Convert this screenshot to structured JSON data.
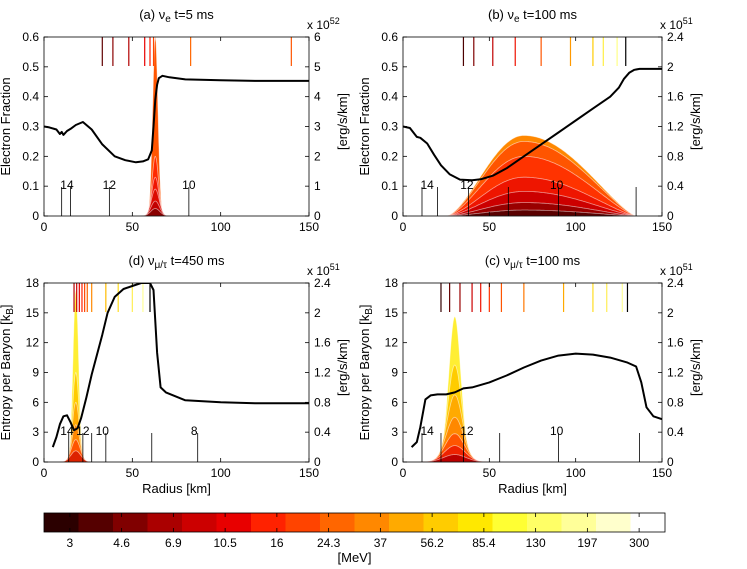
{
  "chart_data": [
    {
      "type": "line",
      "title_main": "(a) ν",
      "title_sub": "e",
      "title_rest": " t=5 ms",
      "xlabel": "",
      "ylabel": "Electron Fraction",
      "ylabel_right": "[erg/s/km]",
      "right_exponent_base": "x 10",
      "right_exponent": "52",
      "xlim": [
        0,
        150
      ],
      "ylim": [
        0,
        0.6
      ],
      "xticks": [
        0,
        50,
        100,
        150
      ],
      "yticks": [
        0,
        0.1,
        0.2,
        0.3,
        0.4,
        0.5,
        0.6
      ],
      "ytick_labels": [
        "0",
        "0.1",
        "0.2",
        "0.3",
        "0.4",
        "0.5",
        "0.6"
      ],
      "yticks_right": [
        0,
        1,
        2,
        3,
        4,
        5,
        6
      ],
      "yticks_right_labels": [
        "0",
        "1",
        "2",
        "3",
        "4",
        "5",
        "6"
      ],
      "right_max": 6,
      "curve": {
        "x": [
          0,
          3,
          7,
          9,
          10,
          11,
          13,
          15,
          18,
          22,
          27,
          33,
          40,
          46,
          52,
          56,
          59,
          61,
          62,
          63,
          64,
          65,
          67,
          71,
          80,
          100,
          120,
          150
        ],
        "y": [
          0.3,
          0.297,
          0.29,
          0.275,
          0.282,
          0.272,
          0.285,
          0.292,
          0.305,
          0.315,
          0.29,
          0.24,
          0.2,
          0.187,
          0.18,
          0.183,
          0.19,
          0.22,
          0.3,
          0.39,
          0.44,
          0.462,
          0.47,
          0.465,
          0.458,
          0.455,
          0.453,
          0.453
        ]
      },
      "spectra": {
        "type": "peak",
        "center": 63,
        "widths": [
          1.5,
          1.8,
          2.0,
          2.2,
          2.4,
          2.6
        ],
        "heights": [
          6.0,
          2.0,
          1.3,
          0.9,
          0.5,
          0.25
        ],
        "colors": [
          "#ff5500",
          "#ff2a00",
          "#f01500",
          "#dc0a00",
          "#c20000",
          "#8a0000"
        ]
      },
      "shells_top": [
        {
          "x": 60,
          "color": "#ff1a00"
        },
        {
          "x": 57,
          "color": "#e80000"
        },
        {
          "x": 48,
          "color": "#b30000"
        },
        {
          "x": 39,
          "color": "#8b0000"
        },
        {
          "x": 33,
          "color": "#600000"
        },
        {
          "x": 62,
          "color": "#ff4400"
        },
        {
          "x": 83,
          "color": "#ff6600"
        },
        {
          "x": 140,
          "color": "#ff5500"
        }
      ],
      "shells_bottom": [
        10,
        15,
        37,
        82
      ],
      "shell_labels": [
        {
          "x": 13,
          "text": "14"
        },
        {
          "x": 37,
          "text": "12"
        },
        {
          "x": 82,
          "text": "10"
        }
      ]
    },
    {
      "type": "line",
      "title_main": "(b) ν",
      "title_sub": "e",
      "title_rest": " t=100 ms",
      "xlabel": "",
      "ylabel": "Electron Fraction",
      "ylabel_right": "[erg/s/km]",
      "right_exponent_base": "x 10",
      "right_exponent": "51",
      "xlim": [
        0,
        150
      ],
      "ylim": [
        0,
        0.6
      ],
      "xticks": [
        0,
        50,
        100,
        150
      ],
      "yticks": [
        0,
        0.1,
        0.2,
        0.3,
        0.4,
        0.5,
        0.6
      ],
      "ytick_labels": [
        "0",
        "0.1",
        "0.2",
        "0.3",
        "0.4",
        "0.5",
        "0.6"
      ],
      "yticks_right": [
        0,
        0.4,
        0.8,
        1.2,
        1.6,
        2.0,
        2.4
      ],
      "yticks_right_labels": [
        "0",
        "0.4",
        "0.8",
        "1.2",
        "1.6",
        "2",
        "2.4"
      ],
      "right_max": 2.4,
      "curve": {
        "x": [
          0,
          4,
          6,
          8,
          10,
          14,
          18,
          22,
          27,
          33,
          40,
          45,
          52,
          60,
          70,
          80,
          90,
          100,
          110,
          120,
          125,
          128,
          131,
          134,
          137,
          150
        ],
        "y": [
          0.3,
          0.295,
          0.28,
          0.265,
          0.262,
          0.243,
          0.205,
          0.17,
          0.14,
          0.122,
          0.12,
          0.123,
          0.135,
          0.16,
          0.2,
          0.24,
          0.28,
          0.32,
          0.36,
          0.4,
          0.43,
          0.46,
          0.48,
          0.49,
          0.493,
          0.493
        ]
      },
      "spectra": {
        "type": "broad",
        "start": 25,
        "peak": 70,
        "end": 135,
        "heights": [
          1.08,
          1.0,
          0.8,
          0.52,
          0.33,
          0.18,
          0.08
        ],
        "colors": [
          "#ff8800",
          "#ff5500",
          "#ff3300",
          "#ee1500",
          "#cc0000",
          "#990000",
          "#5a0000"
        ]
      },
      "shells_top": [
        {
          "x": 35,
          "color": "#4b0000"
        },
        {
          "x": 41,
          "color": "#800000"
        },
        {
          "x": 52,
          "color": "#c00000"
        },
        {
          "x": 65,
          "color": "#ee1100"
        },
        {
          "x": 80,
          "color": "#ff5500"
        },
        {
          "x": 97,
          "color": "#ff9900"
        },
        {
          "x": 110,
          "color": "#ffcc00"
        },
        {
          "x": 116,
          "color": "#ffee44"
        },
        {
          "x": 124,
          "color": "#ffff88"
        },
        {
          "x": 129,
          "color": "#000000"
        }
      ],
      "shells_bottom": [
        11,
        20,
        38,
        61,
        90,
        135
      ],
      "shell_labels": [
        {
          "x": 14,
          "text": "14"
        },
        {
          "x": 37,
          "text": "12"
        },
        {
          "x": 89,
          "text": "10"
        }
      ]
    },
    {
      "type": "line",
      "title_main": "(d) ν",
      "title_sub": "μ/τ",
      "title_rest": " t=450 ms",
      "xlabel": "Radius [km]",
      "ylabel": "Entropy per Baryon [k",
      "ylabel_sub": "B",
      "ylabel_end": "]",
      "ylabel_right": "[erg/s/km]",
      "right_exponent_base": "x 10",
      "right_exponent": "51",
      "xlim": [
        0,
        150
      ],
      "ylim": [
        0,
        18
      ],
      "xticks": [
        0,
        50,
        100,
        150
      ],
      "yticks": [
        0,
        3,
        6,
        9,
        12,
        15,
        18
      ],
      "ytick_labels": [
        "0",
        "3",
        "6",
        "9",
        "12",
        "15",
        "18"
      ],
      "yticks_right": [
        0,
        0.4,
        0.8,
        1.2,
        1.6,
        2.0,
        2.4
      ],
      "yticks_right_labels": [
        "0",
        "0.4",
        "0.8",
        "1.2",
        "1.6",
        "2",
        "2.4"
      ],
      "right_max": 2.4,
      "curve": {
        "x": [
          5,
          7,
          9,
          11,
          13,
          15,
          17,
          19,
          21,
          24,
          27,
          30,
          33,
          36,
          40,
          45,
          50,
          55,
          58,
          60,
          62,
          64,
          66,
          69,
          80,
          100,
          120,
          150
        ],
        "y": [
          1.5,
          2.5,
          3.8,
          4.6,
          4.7,
          4.0,
          3.2,
          3.4,
          4.4,
          6.5,
          8.8,
          10.8,
          12.8,
          15.0,
          16.6,
          17.4,
          17.7,
          18.0,
          18.0,
          18.0,
          17.3,
          11.0,
          7.5,
          7.0,
          6.2,
          6.0,
          5.9,
          5.9
        ]
      },
      "spectra": {
        "type": "peak",
        "center": 18,
        "widths": [
          1.6,
          1.8,
          2.0,
          2.2,
          2.5,
          2.8
        ],
        "heights": [
          2.3,
          1.2,
          0.8,
          0.5,
          0.3,
          0.15
        ],
        "colors": [
          "#ffee33",
          "#ffcc00",
          "#ffaa00",
          "#ff8800",
          "#ff5500",
          "#dd2200"
        ]
      },
      "shells_top": [
        {
          "x": 17,
          "color": "#b30000"
        },
        {
          "x": 18.5,
          "color": "#cc0000"
        },
        {
          "x": 20,
          "color": "#e60000"
        },
        {
          "x": 21.5,
          "color": "#ff2200"
        },
        {
          "x": 23,
          "color": "#ff4400"
        },
        {
          "x": 24.5,
          "color": "#ff6600"
        },
        {
          "x": 27,
          "color": "#ff8800"
        },
        {
          "x": 35,
          "color": "#ffbb00"
        },
        {
          "x": 42,
          "color": "#ffdd22"
        },
        {
          "x": 50,
          "color": "#ffee55"
        },
        {
          "x": 56,
          "color": "#ffff99"
        },
        {
          "x": 60,
          "color": "#000000"
        }
      ],
      "shells_bottom": [
        14,
        22,
        27,
        35,
        61,
        87
      ],
      "shell_labels": [
        {
          "x": 13,
          "text": "14"
        },
        {
          "x": 22,
          "text": "12"
        },
        {
          "x": 33,
          "text": "10"
        },
        {
          "x": 85,
          "text": "8"
        }
      ]
    },
    {
      "type": "line",
      "title_main": "(c) ν",
      "title_sub": "μ/τ",
      "title_rest": " t=100 ms",
      "xlabel": "Radius [km]",
      "ylabel": "Entropy per Baryon [k",
      "ylabel_sub": "B",
      "ylabel_end": "]",
      "ylabel_right": "[erg/s/km]",
      "right_exponent_base": "x 10",
      "right_exponent": "51",
      "xlim": [
        0,
        150
      ],
      "ylim": [
        0,
        18
      ],
      "xticks": [
        0,
        50,
        100,
        150
      ],
      "yticks": [
        0,
        3,
        6,
        9,
        12,
        15,
        18
      ],
      "ytick_labels": [
        "0",
        "3",
        "6",
        "9",
        "12",
        "15",
        "18"
      ],
      "yticks_right": [
        0,
        0.4,
        0.8,
        1.2,
        1.6,
        2.0,
        2.4
      ],
      "yticks_right_labels": [
        "0",
        "0.4",
        "0.8",
        "1.2",
        "1.6",
        "2",
        "2.4"
      ],
      "right_max": 2.4,
      "curve": {
        "x": [
          5,
          8,
          10,
          13,
          16,
          20,
          25,
          30,
          35,
          40,
          50,
          60,
          70,
          80,
          90,
          100,
          110,
          120,
          130,
          135,
          138,
          141,
          145,
          150
        ],
        "y": [
          1.5,
          2.0,
          3.5,
          6.3,
          6.7,
          6.8,
          6.8,
          7.0,
          7.4,
          7.5,
          8.0,
          8.7,
          9.5,
          10.2,
          10.7,
          10.9,
          10.8,
          10.5,
          10.0,
          9.6,
          8.0,
          5.5,
          4.6,
          4.3
        ]
      },
      "spectra": {
        "type": "peak",
        "center": 30,
        "widths": [
          3.5,
          4.0,
          4.5,
          5.0,
          5.5,
          6.0,
          6.5
        ],
        "heights": [
          1.95,
          1.3,
          0.9,
          0.6,
          0.38,
          0.22,
          0.1
        ],
        "colors": [
          "#ffee33",
          "#ffcc00",
          "#ffaa00",
          "#ff8800",
          "#ff5500",
          "#ee2200",
          "#bb0000"
        ]
      },
      "shells_top": [
        {
          "x": 22,
          "color": "#330000"
        },
        {
          "x": 27,
          "color": "#660000"
        },
        {
          "x": 33,
          "color": "#990000"
        },
        {
          "x": 40,
          "color": "#cc0000"
        },
        {
          "x": 45,
          "color": "#ee1100"
        },
        {
          "x": 50,
          "color": "#ff3300"
        },
        {
          "x": 57,
          "color": "#ff5500"
        },
        {
          "x": 70,
          "color": "#ff7700"
        },
        {
          "x": 93,
          "color": "#ffaa00"
        },
        {
          "x": 110,
          "color": "#ffdd22"
        },
        {
          "x": 118,
          "color": "#ffee55"
        },
        {
          "x": 127,
          "color": "#ffff99"
        },
        {
          "x": 130,
          "color": "#000000"
        }
      ],
      "shells_bottom": [
        11,
        22,
        35,
        56,
        90,
        137
      ],
      "shell_labels": [
        {
          "x": 14,
          "text": "14"
        },
        {
          "x": 37,
          "text": "12"
        },
        {
          "x": 89,
          "text": "10"
        }
      ]
    }
  ],
  "colorbar": {
    "label": "[MeV]",
    "tick_labels": [
      "3",
      "4.6",
      "6.9",
      "10.5",
      "16",
      "24.3",
      "37",
      "56.2",
      "85.4",
      "130",
      "197",
      "300"
    ],
    "colors": [
      "#2b0000",
      "#550000",
      "#800000",
      "#aa0000",
      "#cc0000",
      "#e80000",
      "#ff2200",
      "#ff4400",
      "#ff6600",
      "#ff8800",
      "#ffaa00",
      "#ffcc00",
      "#ffe800",
      "#ffff33",
      "#ffff66",
      "#ffff99",
      "#ffffcc",
      "#ffffff"
    ]
  }
}
